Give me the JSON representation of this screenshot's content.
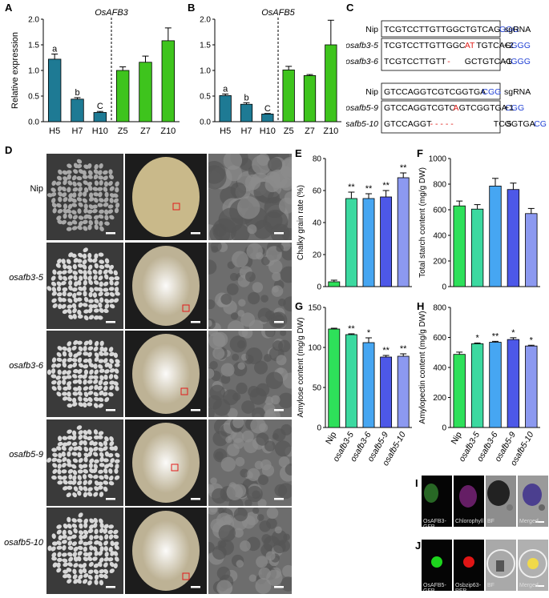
{
  "panel_letters": {
    "A": "A",
    "B": "B",
    "C": "C",
    "D": "D",
    "E": "E",
    "F": "F",
    "G": "G",
    "H": "H",
    "I": "I",
    "J": "J"
  },
  "chart_data": [
    {
      "id": "A",
      "type": "bar",
      "title": "OsAFB3",
      "ylabel": "Relative expression",
      "ylim": [
        0,
        2.0
      ],
      "yticks": [
        "0.0",
        "0.5",
        "1.0",
        "1.5",
        "2.0"
      ],
      "categories": [
        "H5",
        "H7",
        "H10",
        "Z5",
        "Z7",
        "Z10"
      ],
      "values": [
        1.22,
        0.44,
        0.18,
        1.0,
        1.16,
        1.58
      ],
      "errors": [
        0.1,
        0.03,
        0.02,
        0.07,
        0.12,
        0.25
      ],
      "labels": [
        "a",
        "b",
        "C",
        "",
        "",
        ""
      ],
      "colors": [
        "#1e7a94",
        "#1e7a94",
        "#1e7a94",
        "#3ec41d",
        "#3ec41d",
        "#3ec41d"
      ],
      "divider_after": 3
    },
    {
      "id": "B",
      "type": "bar",
      "title": "OsAFB5",
      "ylabel": "",
      "ylim": [
        0,
        2.0
      ],
      "yticks": [
        "0.0",
        "0.5",
        "1.0",
        "1.5",
        "2.0"
      ],
      "categories": [
        "H5",
        "H7",
        "H10",
        "Z5",
        "Z7",
        "Z10"
      ],
      "values": [
        0.51,
        0.34,
        0.15,
        1.01,
        0.9,
        1.5
      ],
      "errors": [
        0.03,
        0.03,
        0.01,
        0.07,
        0.02,
        0.48
      ],
      "labels": [
        "a",
        "b",
        "C",
        "",
        "",
        ""
      ],
      "colors": [
        "#1e7a94",
        "#1e7a94",
        "#1e7a94",
        "#3ec41d",
        "#3ec41d",
        "#3ec41d"
      ],
      "divider_after": 3
    },
    {
      "id": "E",
      "type": "bar",
      "ylabel": "Chalky grain rate (%)",
      "ylim": [
        0,
        80
      ],
      "yticks": [
        "0",
        "20",
        "40",
        "60",
        "80"
      ],
      "categories": [
        "Nip",
        "osafb3-5",
        "osafb3-6",
        "osafb5-9",
        "osafb5-10"
      ],
      "values": [
        3,
        55,
        55,
        56,
        68
      ],
      "errors": [
        1,
        4,
        3,
        4,
        3
      ],
      "labels": [
        "",
        "**",
        "**",
        "**",
        "**"
      ]
    },
    {
      "id": "F",
      "type": "bar",
      "ylabel": "Total starch content (mg/g DW)",
      "ylim": [
        0,
        1000
      ],
      "yticks": [
        "0",
        "200",
        "400",
        "600",
        "800",
        "1000"
      ],
      "categories": [
        "Nip",
        "osafb3-5",
        "osafb3-6",
        "osafb5-9",
        "osafb5-10"
      ],
      "values": [
        630,
        605,
        785,
        758,
        570
      ],
      "errors": [
        38,
        35,
        60,
        50,
        40
      ],
      "labels": [
        "",
        "",
        "",
        "",
        ""
      ]
    },
    {
      "id": "G",
      "type": "bar",
      "ylabel": "Amylose content (mg/g DW)",
      "ylim": [
        0,
        150
      ],
      "yticks": [
        "0",
        "50",
        "100",
        "150"
      ],
      "categories": [
        "Nip",
        "osafb3-5",
        "osafb3-6",
        "osafb5-9",
        "osafb5-10"
      ],
      "values": [
        123,
        116,
        106,
        88,
        89
      ],
      "errors": [
        1,
        1,
        6,
        2,
        3
      ],
      "labels": [
        "",
        "**",
        "*",
        "**",
        "**"
      ]
    },
    {
      "id": "H",
      "type": "bar",
      "ylabel": "Amylopectin content (mg/g DW)",
      "ylim": [
        0,
        800
      ],
      "yticks": [
        "0",
        "200",
        "400",
        "600",
        "800"
      ],
      "categories": [
        "Nip",
        "osafb3-5",
        "osafb3-6",
        "osafb5-9",
        "osafb5-10"
      ],
      "values": [
        487,
        558,
        568,
        586,
        543
      ],
      "errors": [
        15,
        5,
        6,
        12,
        5
      ],
      "labels": [
        "",
        "*",
        "**",
        "*",
        "*"
      ]
    }
  ],
  "bar_colors_mutants": [
    "#2ee05a",
    "#3cd9a0",
    "#46a6f2",
    "#4d58e8",
    "#8c99f0"
  ],
  "sgrna": {
    "group1": {
      "rows": [
        {
          "name": "Nip",
          "segments": [
            {
              "t": "TCGTCCTTGTTGGCTGTCAG",
              "c": "#000"
            },
            {
              "t": "GGG",
              "c": "#1f3fd4"
            }
          ],
          "suffix": "sgRNA"
        },
        {
          "name": "osafb3-5",
          "segments": [
            {
              "t": "TCGTCCTTGTTGGC",
              "c": "#000"
            },
            {
              "t": "AT",
              "c": "#e0201c"
            },
            {
              "t": "TGTCAG",
              "c": "#000"
            },
            {
              "t": "GGG",
              "c": "#1f3fd4"
            }
          ],
          "suffix": "+2"
        },
        {
          "name": "osafb3-6",
          "segments": [
            {
              "t": "TCGTCCTTGTT",
              "c": "#000"
            },
            {
              "t": " - ",
              "c": "#e0201c"
            },
            {
              "t": "GCTGTCAG",
              "c": "#000"
            },
            {
              "t": "GGG",
              "c": "#1f3fd4"
            }
          ],
          "suffix": "-1"
        }
      ]
    },
    "group2": {
      "rows": [
        {
          "name": "Nip",
          "segments": [
            {
              "t": "GTCCAGGTCGTCGGTGA",
              "c": "#000"
            },
            {
              "t": "CGG",
              "c": "#1f3fd4"
            }
          ],
          "suffix": "sgRNA"
        },
        {
          "name": "osafb5-9",
          "segments": [
            {
              "t": "GTCCAGGTCGTC",
              "c": "#000"
            },
            {
              "t": "A",
              "c": "#e0201c"
            },
            {
              "t": "GTCGGTGA",
              "c": "#000"
            },
            {
              "t": "CGG",
              "c": "#1f3fd4"
            }
          ],
          "suffix": "+1"
        },
        {
          "name": "osafb5-10",
          "segments": [
            {
              "t": "GTCCAGGT",
              "c": "#000"
            },
            {
              "t": " - - - - - ",
              "c": "#e0201c"
            },
            {
              "t": "TCGGTGA",
              "c": "#000"
            },
            {
              "t": "CGG",
              "c": "#1f3fd4"
            }
          ],
          "suffix": "-5"
        }
      ]
    }
  },
  "grain_rows": [
    "Nip",
    "osafb3-5",
    "osafb3-6",
    "osafb5-9",
    "osafb5-10"
  ],
  "panel_i_captions": [
    "OsAFB3-GFP",
    "Chlorophyll",
    "BF",
    "Merged"
  ],
  "panel_j_captions": [
    "OsAFB5-GFP",
    "Osbzip63-RFP",
    "BF",
    "Merged"
  ]
}
